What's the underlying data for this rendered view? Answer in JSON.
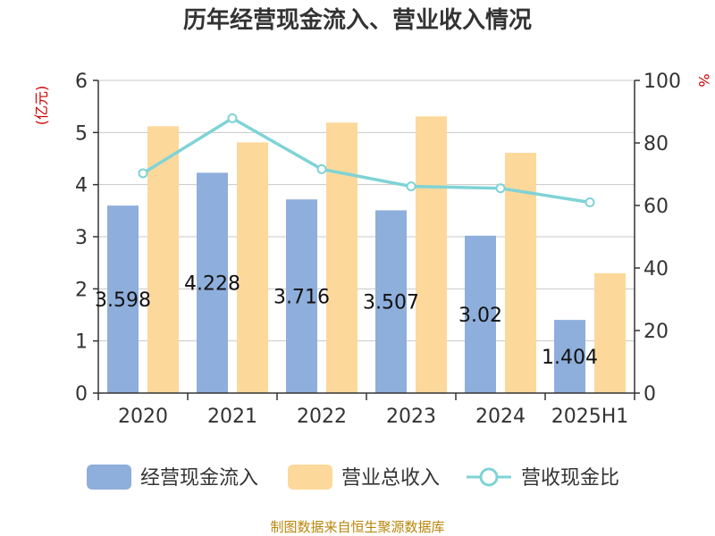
{
  "colors": {
    "bar1": "#8eaedb",
    "bar2": "#fdd89b",
    "line": "#7fd3d6",
    "grid": "#c8c8c8",
    "axis": "#333333",
    "unit": "#cc0000",
    "source": "#b8860b"
  },
  "chart_data": {
    "type": "bar",
    "title": "历年经营现金流入、营业收入情况",
    "categories": [
      "2020",
      "2021",
      "2022",
      "2023",
      "2024",
      "2025H1"
    ],
    "series": [
      {
        "name": "经营现金流入",
        "type": "bar",
        "axis": "left",
        "values": [
          3.598,
          4.228,
          3.716,
          3.507,
          3.02,
          1.404
        ],
        "labels": [
          "3.598",
          "4.228",
          "3.716",
          "3.507",
          "3.02",
          "1.404"
        ]
      },
      {
        "name": "营业总收入",
        "type": "bar",
        "axis": "left",
        "values": [
          5.12,
          4.81,
          5.19,
          5.31,
          4.61,
          2.3
        ]
      },
      {
        "name": "营收现金比",
        "type": "line",
        "axis": "right",
        "values": [
          70.3,
          87.9,
          71.6,
          66.1,
          65.5,
          61.0
        ]
      }
    ],
    "y_left": {
      "unit": "(亿元)",
      "ylim": [
        0,
        6
      ],
      "ticks": [
        "0",
        "1",
        "2",
        "3",
        "4",
        "5",
        "6"
      ]
    },
    "y_right": {
      "unit": "%",
      "ylim": [
        0,
        100
      ],
      "ticks": [
        "0",
        "20",
        "40",
        "60",
        "80",
        "100"
      ]
    },
    "grid": true,
    "legend_position": "bottom"
  },
  "source": "制图数据来自恒生聚源数据库"
}
